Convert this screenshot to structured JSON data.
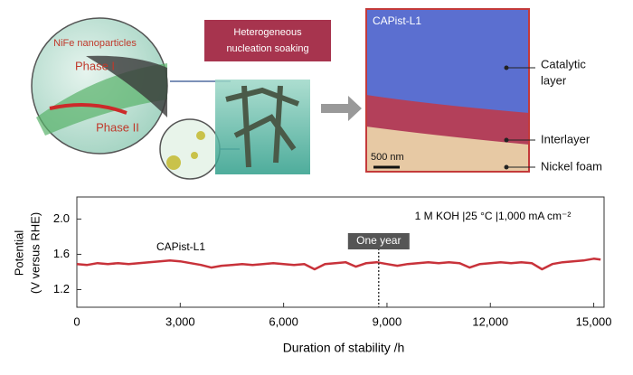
{
  "illustration": {
    "nanoparticles": "NiFe nanoparticles",
    "phase1": "Phase I",
    "phase2": "Phase II",
    "soaking": [
      "Heterogeneous",
      "nucleation soaking"
    ],
    "sem_label": "CAPist-L1",
    "layers": [
      [
        "Catalytic",
        "layer"
      ],
      [
        "Interlayer"
      ],
      [
        "Nickel foam"
      ]
    ],
    "scale_bar": "500 nm"
  },
  "chart_data": {
    "type": "line",
    "xlabel": "Duration of stability /h",
    "ylabel": [
      "Potential",
      "(V versus RHE)"
    ],
    "annotation": "1 M KOH |25 °C |1,000 mA cm⁻²",
    "marker": {
      "x": 8760,
      "label": "One year"
    },
    "x": [
      0,
      300,
      600,
      900,
      1200,
      1500,
      1800,
      2100,
      2400,
      2700,
      3000,
      3300,
      3600,
      3900,
      4200,
      4500,
      4800,
      5100,
      5400,
      5700,
      6000,
      6300,
      6600,
      6900,
      7200,
      7500,
      7800,
      8100,
      8400,
      8700,
      9000,
      9300,
      9600,
      9900,
      10200,
      10500,
      10800,
      11100,
      11400,
      11700,
      12000,
      12300,
      12600,
      12900,
      13200,
      13500,
      13800,
      14100,
      14400,
      14700,
      15000,
      15200
    ],
    "series": [
      {
        "name": "CAPist-L1",
        "color": "#c8323a",
        "values": [
          1.49,
          1.48,
          1.5,
          1.49,
          1.5,
          1.49,
          1.5,
          1.51,
          1.52,
          1.53,
          1.52,
          1.5,
          1.48,
          1.45,
          1.47,
          1.48,
          1.49,
          1.48,
          1.49,
          1.5,
          1.49,
          1.48,
          1.49,
          1.43,
          1.49,
          1.5,
          1.51,
          1.46,
          1.5,
          1.51,
          1.49,
          1.47,
          1.49,
          1.5,
          1.51,
          1.5,
          1.51,
          1.5,
          1.45,
          1.49,
          1.5,
          1.51,
          1.5,
          1.51,
          1.5,
          1.43,
          1.49,
          1.51,
          1.52,
          1.53,
          1.55,
          1.54
        ]
      }
    ],
    "xlim": [
      0,
      15300
    ],
    "ylim": [
      1.0,
      2.25
    ],
    "xticks": [
      0,
      {
        "value": 3000,
        "label": "3,000"
      },
      {
        "value": 6000,
        "label": "6,000"
      },
      {
        "value": 9000,
        "label": "9,000"
      },
      {
        "value": 12000,
        "label": "12,000"
      },
      {
        "value": 15000,
        "label": "15,000"
      }
    ],
    "yticks": [
      1.2,
      1.6,
      {
        "value": 2,
        "label": "2.0"
      }
    ]
  }
}
